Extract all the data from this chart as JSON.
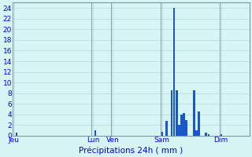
{
  "title": "Précipitations 24h ( mm )",
  "background_color": "#d8f5f5",
  "grid_color": "#b8d8d8",
  "bar_color": "#1a56cc",
  "ylim": [
    0,
    25
  ],
  "yticks": [
    0,
    2,
    4,
    6,
    8,
    10,
    12,
    14,
    16,
    18,
    20,
    22,
    24
  ],
  "day_labels": [
    "Jeu",
    "Lun",
    "Ven",
    "Sam",
    "Dim"
  ],
  "day_tick_positions": [
    0,
    32,
    40,
    60,
    84
  ],
  "vline_positions": [
    0,
    32,
    40,
    60,
    84
  ],
  "n_bars": 96,
  "values": [
    0,
    0.5,
    0,
    0,
    0,
    0,
    0,
    0,
    0,
    0,
    0,
    0,
    0,
    0,
    0,
    0,
    0,
    0,
    0,
    0,
    0,
    0,
    0,
    0,
    0,
    0,
    0,
    0,
    0,
    0,
    0,
    0,
    0,
    1.0,
    0,
    0,
    0,
    0,
    0,
    0,
    0,
    0,
    0,
    0,
    0,
    0,
    0,
    0,
    0,
    0,
    0,
    0,
    0,
    0,
    0,
    0,
    0,
    0,
    0,
    0,
    0.7,
    0,
    2.8,
    0,
    8.5,
    24,
    8.5,
    2.0,
    4.0,
    4.2,
    3.0,
    0,
    0,
    8.5,
    1.0,
    4.5,
    0,
    0,
    0.5,
    0.3,
    0,
    0,
    0,
    0,
    0.3,
    0,
    0,
    0,
    0,
    0,
    0,
    0,
    0,
    0,
    0,
    0
  ],
  "figwidth": 3.2,
  "figheight": 2.0,
  "dpi": 100
}
